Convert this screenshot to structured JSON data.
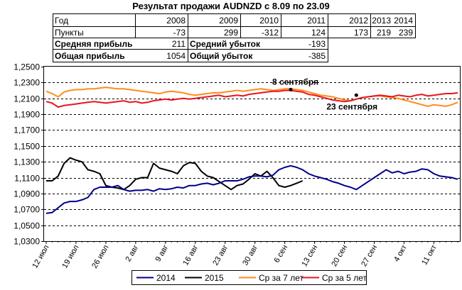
{
  "title": "Результат продажи AUDNZD с 8.09 по 23.09",
  "table": {
    "row_year_label": "Год",
    "years": [
      "2008",
      "2009",
      "2010",
      "2011",
      "2012",
      "2013",
      "2014"
    ],
    "row_points_label": "Пункты",
    "points": [
      "-73",
      "299",
      "-312",
      "124",
      "173",
      "219",
      "239"
    ],
    "avg_profit_label": "Средняя прибыль",
    "avg_profit": "211",
    "avg_loss_label": "Средний убыток",
    "avg_loss": "-193",
    "total_profit_label": "Общая прибыль",
    "total_profit": "1054",
    "total_loss_label": "Общий убыток",
    "total_loss": "-385"
  },
  "colors": {
    "s2014": "#00008b",
    "s2015": "#000000",
    "s7": "#ff8c1a",
    "s5": "#e8141e",
    "grid": "#000000"
  },
  "chart_data": {
    "type": "line",
    "ylim": [
      1.03,
      1.25
    ],
    "yticks": [
      "1,0300",
      "1,0500",
      "1,0700",
      "1,0900",
      "1,1100",
      "1,1300",
      "1,1500",
      "1,1700",
      "1,1900",
      "1,2100",
      "1,2300",
      "1,2500"
    ],
    "ytick_values": [
      1.03,
      1.05,
      1.07,
      1.09,
      1.11,
      1.13,
      1.15,
      1.17,
      1.19,
      1.21,
      1.23,
      1.25
    ],
    "x_count": 70,
    "xticks": [
      {
        "i": 0,
        "label": "12 июл"
      },
      {
        "i": 5,
        "label": "19 июл"
      },
      {
        "i": 10,
        "label": "26 июл"
      },
      {
        "i": 15,
        "label": "2 авг"
      },
      {
        "i": 20,
        "label": "9 авг"
      },
      {
        "i": 25,
        "label": "16 авг"
      },
      {
        "i": 30,
        "label": "23 авг"
      },
      {
        "i": 35,
        "label": "30 авг"
      },
      {
        "i": 40,
        "label": "6 сен"
      },
      {
        "i": 45,
        "label": "13 сен"
      },
      {
        "i": 50,
        "label": "20 сен"
      },
      {
        "i": 55,
        "label": "27 сен"
      },
      {
        "i": 60,
        "label": "4 окт"
      },
      {
        "i": 65,
        "label": "11 окт"
      }
    ],
    "grid": "horizontal dashed",
    "legend_position": "bottom",
    "annotations": [
      {
        "text": "8 сентября",
        "i": 41,
        "y": 1.221
      },
      {
        "text": "23 сентября",
        "i": 52,
        "y": 1.214
      }
    ],
    "series": [
      {
        "name": "2014",
        "color_key": "s2014",
        "start": 0,
        "values": [
          1.065,
          1.066,
          1.072,
          1.078,
          1.08,
          1.08,
          1.082,
          1.085,
          1.095,
          1.098,
          1.098,
          1.098,
          1.1,
          1.095,
          1.093,
          1.094,
          1.094,
          1.095,
          1.093,
          1.096,
          1.095,
          1.096,
          1.098,
          1.097,
          1.1,
          1.1,
          1.102,
          1.103,
          1.101,
          1.103,
          1.106,
          1.106,
          1.106,
          1.108,
          1.111,
          1.112,
          1.112,
          1.111,
          1.113,
          1.12,
          1.123,
          1.125,
          1.123,
          1.12,
          1.115,
          1.112,
          1.11,
          1.108,
          1.105,
          1.103,
          1.1,
          1.098,
          1.095,
          1.1,
          1.105,
          1.11,
          1.115,
          1.12,
          1.116,
          1.118,
          1.115,
          1.117,
          1.118,
          1.121,
          1.12,
          1.115,
          1.112,
          1.111,
          1.11,
          1.108
        ]
      },
      {
        "name": "2015",
        "color_key": "s2015",
        "start": 0,
        "values": [
          1.106,
          1.106,
          1.112,
          1.128,
          1.135,
          1.132,
          1.13,
          1.12,
          1.118,
          1.115,
          1.1,
          1.098,
          1.097,
          1.095,
          1.1,
          1.108,
          1.11,
          1.11,
          1.128,
          1.122,
          1.12,
          1.118,
          1.115,
          1.125,
          1.129,
          1.128,
          1.118,
          1.112,
          1.11,
          1.105,
          1.1,
          1.095,
          1.1,
          1.102,
          1.108,
          1.115,
          1.112,
          1.118,
          1.11,
          1.1,
          1.098,
          1.1,
          1.103,
          1.106
        ]
      },
      {
        "name": "Ср за 7 лет",
        "color_key": "s7",
        "start": 0,
        "values": [
          1.219,
          1.216,
          1.212,
          1.218,
          1.22,
          1.221,
          1.221,
          1.222,
          1.222,
          1.223,
          1.224,
          1.223,
          1.222,
          1.222,
          1.221,
          1.22,
          1.219,
          1.218,
          1.217,
          1.216,
          1.218,
          1.219,
          1.218,
          1.217,
          1.215,
          1.214,
          1.215,
          1.216,
          1.217,
          1.217,
          1.218,
          1.219,
          1.22,
          1.219,
          1.22,
          1.221,
          1.222,
          1.221,
          1.22,
          1.221,
          1.222,
          1.222,
          1.221,
          1.22,
          1.218,
          1.216,
          1.214,
          1.213,
          1.212,
          1.21,
          1.208,
          1.207,
          1.209,
          1.211,
          1.212,
          1.213,
          1.213,
          1.212,
          1.211,
          1.21,
          1.208,
          1.206,
          1.204,
          1.202,
          1.2,
          1.202,
          1.201,
          1.2,
          1.202,
          1.205
        ]
      },
      {
        "name": "Ср за 5 лет",
        "color_key": "s5",
        "start": 0,
        "values": [
          1.206,
          1.204,
          1.199,
          1.201,
          1.202,
          1.203,
          1.204,
          1.205,
          1.206,
          1.205,
          1.204,
          1.205,
          1.206,
          1.207,
          1.205,
          1.206,
          1.204,
          1.205,
          1.207,
          1.208,
          1.209,
          1.208,
          1.209,
          1.21,
          1.209,
          1.21,
          1.211,
          1.212,
          1.213,
          1.214,
          1.212,
          1.213,
          1.214,
          1.213,
          1.215,
          1.216,
          1.217,
          1.218,
          1.219,
          1.219,
          1.22,
          1.22,
          1.219,
          1.218,
          1.215,
          1.214,
          1.212,
          1.21,
          1.208,
          1.207,
          1.206,
          1.207,
          1.209,
          1.211,
          1.212,
          1.213,
          1.214,
          1.213,
          1.212,
          1.214,
          1.213,
          1.212,
          1.214,
          1.215,
          1.213,
          1.214,
          1.215,
          1.216,
          1.216,
          1.217
        ]
      }
    ]
  },
  "legend": [
    {
      "name": "2014",
      "color_key": "s2014"
    },
    {
      "name": "2015",
      "color_key": "s2015"
    },
    {
      "name": "Ср за 7 лет",
      "color_key": "s7"
    },
    {
      "name": "Ср за 5 лет",
      "color_key": "s5"
    }
  ]
}
